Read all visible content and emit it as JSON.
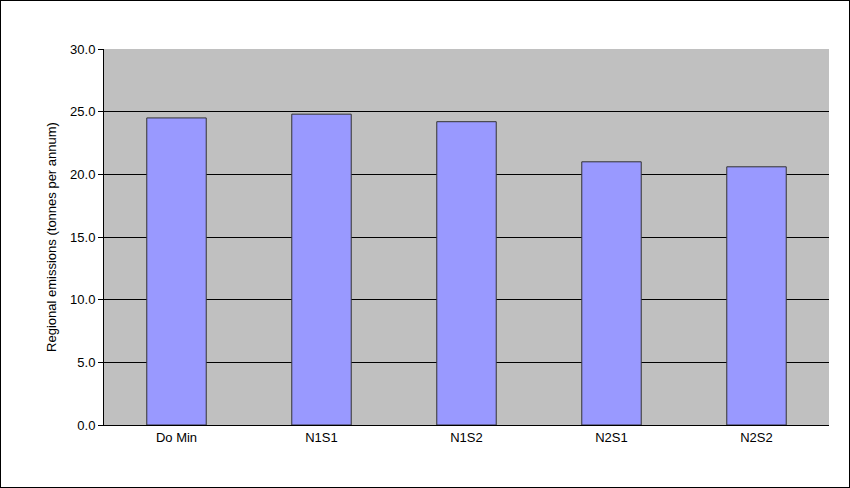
{
  "chart_data": {
    "type": "bar",
    "y_label": "Regional emissions (tonnes per annum)",
    "categories": [
      "Do Min",
      "N1S1",
      "N1S2",
      "N2S1",
      "N2S2"
    ],
    "values": [
      24.5,
      24.8,
      24.2,
      21.0,
      20.6
    ],
    "color": "#9999ff",
    "ylim": [
      0,
      30
    ],
    "yticks": [
      {
        "value": 0,
        "label": "0.0"
      },
      {
        "value": 5,
        "label": "5.0"
      },
      {
        "value": 10,
        "label": "10.0"
      },
      {
        "value": 15,
        "label": "15.0"
      },
      {
        "value": 20,
        "label": "20.0"
      },
      {
        "value": 25,
        "label": "25.0"
      },
      {
        "value": 30,
        "label": "30.0"
      }
    ],
    "grid": true
  }
}
